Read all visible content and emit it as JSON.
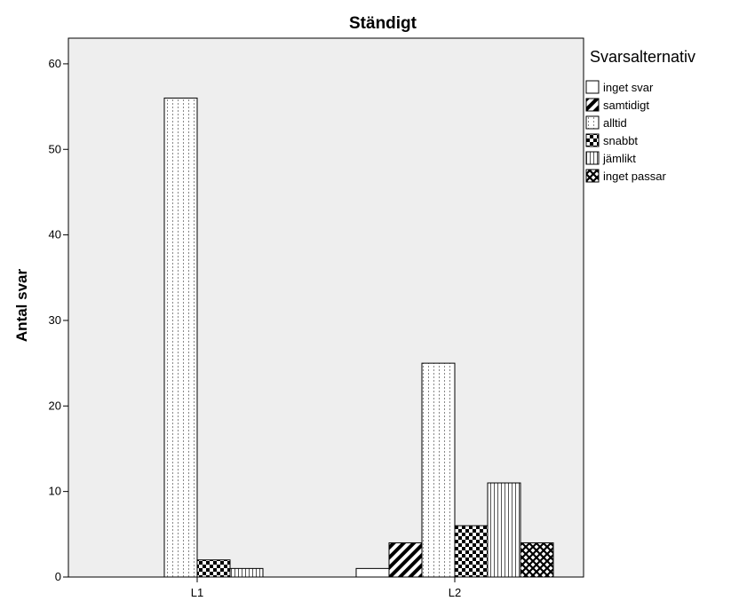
{
  "chart_data": {
    "type": "bar",
    "title": "Ständigt",
    "xlabel": "",
    "ylabel": "Antal svar",
    "categories": [
      "L1",
      "L2"
    ],
    "ylim": [
      0,
      63
    ],
    "yticks": [
      0,
      10,
      20,
      30,
      40,
      50,
      60
    ],
    "grid": false,
    "legend": {
      "title": "Svarsalternativ",
      "placement": "right"
    },
    "series": [
      {
        "name": "inget svar",
        "pattern": "empty",
        "values": [
          0,
          1
        ]
      },
      {
        "name": "samtidigt",
        "pattern": "diagonal",
        "values": [
          0,
          4
        ]
      },
      {
        "name": "alltid",
        "pattern": "dotted",
        "values": [
          56,
          25
        ]
      },
      {
        "name": "snabbt",
        "pattern": "checker",
        "values": [
          2,
          6
        ]
      },
      {
        "name": "jämlikt",
        "pattern": "vertical",
        "values": [
          1,
          11
        ]
      },
      {
        "name": "inget passar",
        "pattern": "crosshatch",
        "values": [
          0,
          4
        ]
      }
    ],
    "colors": {
      "plot_background": "#eeeeee",
      "bar_fill": "#ffffff",
      "stroke": "#000000"
    }
  }
}
